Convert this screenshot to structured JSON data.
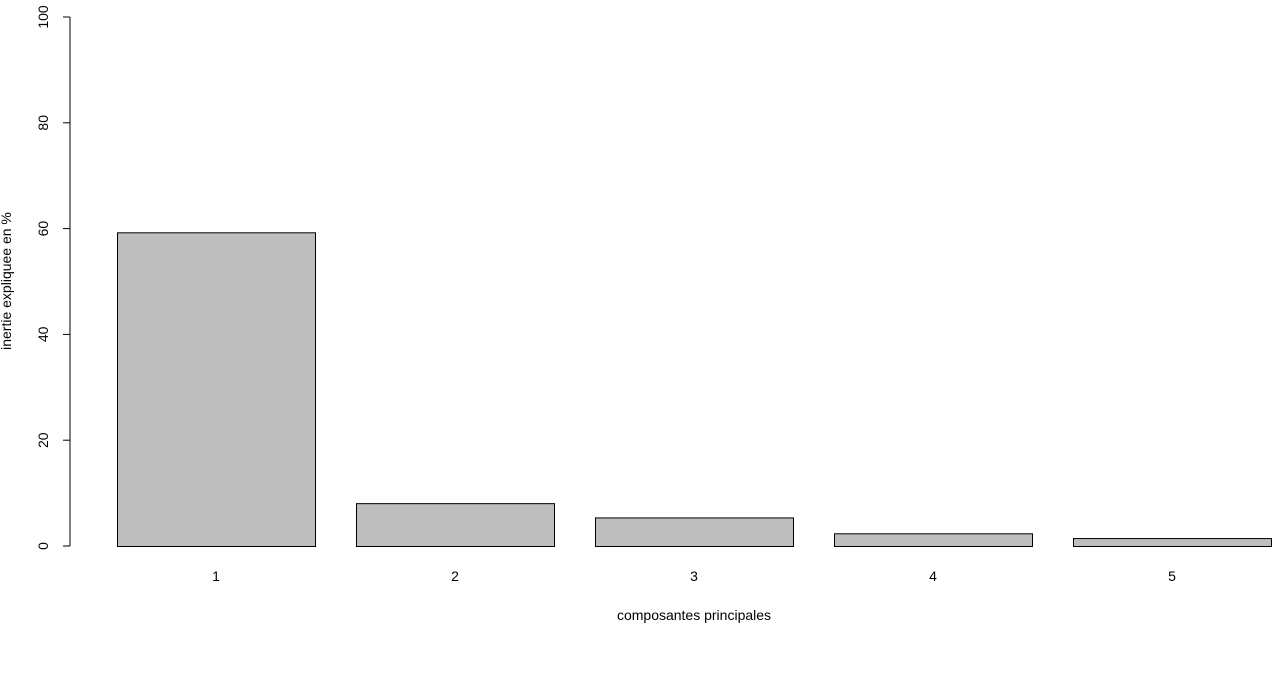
{
  "chart_data": {
    "type": "bar",
    "categories": [
      "1",
      "2",
      "3",
      "4",
      "5"
    ],
    "values": [
      59.3,
      8.1,
      5.4,
      2.4,
      1.5
    ],
    "title": "",
    "xlabel": "composantes principales",
    "ylabel": "inertie expliquee en %",
    "ylim": [
      0,
      100
    ],
    "yticks": [
      "0",
      "20",
      "40",
      "60",
      "80",
      "100"
    ],
    "grid": false,
    "bar_color": "#bebebe",
    "bar_border_color": "#000000"
  }
}
